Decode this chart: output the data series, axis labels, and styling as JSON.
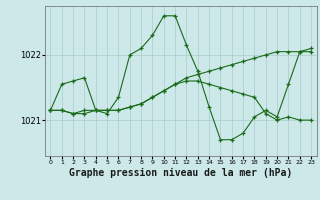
{
  "background_color": "#cce8e8",
  "plot_bg_color": "#cce8e8",
  "grid_color": "#aacccc",
  "line_color": "#1a6b1a",
  "marker_color": "#1a6b1a",
  "xlabel": "Graphe pression niveau de la mer (hPa)",
  "xlabel_fontsize": 7,
  "ylabel_ticks": [
    1021,
    1022
  ],
  "ylim": [
    1020.45,
    1022.75
  ],
  "xlim": [
    -0.5,
    23.5
  ],
  "xticks": [
    0,
    1,
    2,
    3,
    4,
    5,
    6,
    7,
    8,
    9,
    10,
    11,
    12,
    13,
    14,
    15,
    16,
    17,
    18,
    19,
    20,
    21,
    22,
    23
  ],
  "series1": [
    1021.15,
    1021.55,
    1021.6,
    1021.65,
    1021.15,
    1021.1,
    1021.35,
    1022.0,
    1022.1,
    1022.3,
    1022.6,
    1022.6,
    1022.15,
    1021.75,
    1021.2,
    1020.7,
    1020.7,
    1020.8,
    1021.05,
    1021.15,
    1021.05,
    1021.55,
    1022.05,
    1022.1
  ],
  "series2": [
    1021.15,
    1021.15,
    1021.1,
    1021.15,
    1021.15,
    1021.15,
    1021.15,
    1021.2,
    1021.25,
    1021.35,
    1021.45,
    1021.55,
    1021.65,
    1021.7,
    1021.75,
    1021.8,
    1021.85,
    1021.9,
    1021.95,
    1022.0,
    1022.05,
    1022.05,
    1022.05,
    1022.05
  ],
  "series3": [
    1021.15,
    1021.15,
    1021.1,
    1021.1,
    1021.15,
    1021.15,
    1021.15,
    1021.2,
    1021.25,
    1021.35,
    1021.45,
    1021.55,
    1021.6,
    1021.6,
    1021.55,
    1021.5,
    1021.45,
    1021.4,
    1021.35,
    1021.1,
    1021.0,
    1021.05,
    1021.0,
    1021.0
  ]
}
